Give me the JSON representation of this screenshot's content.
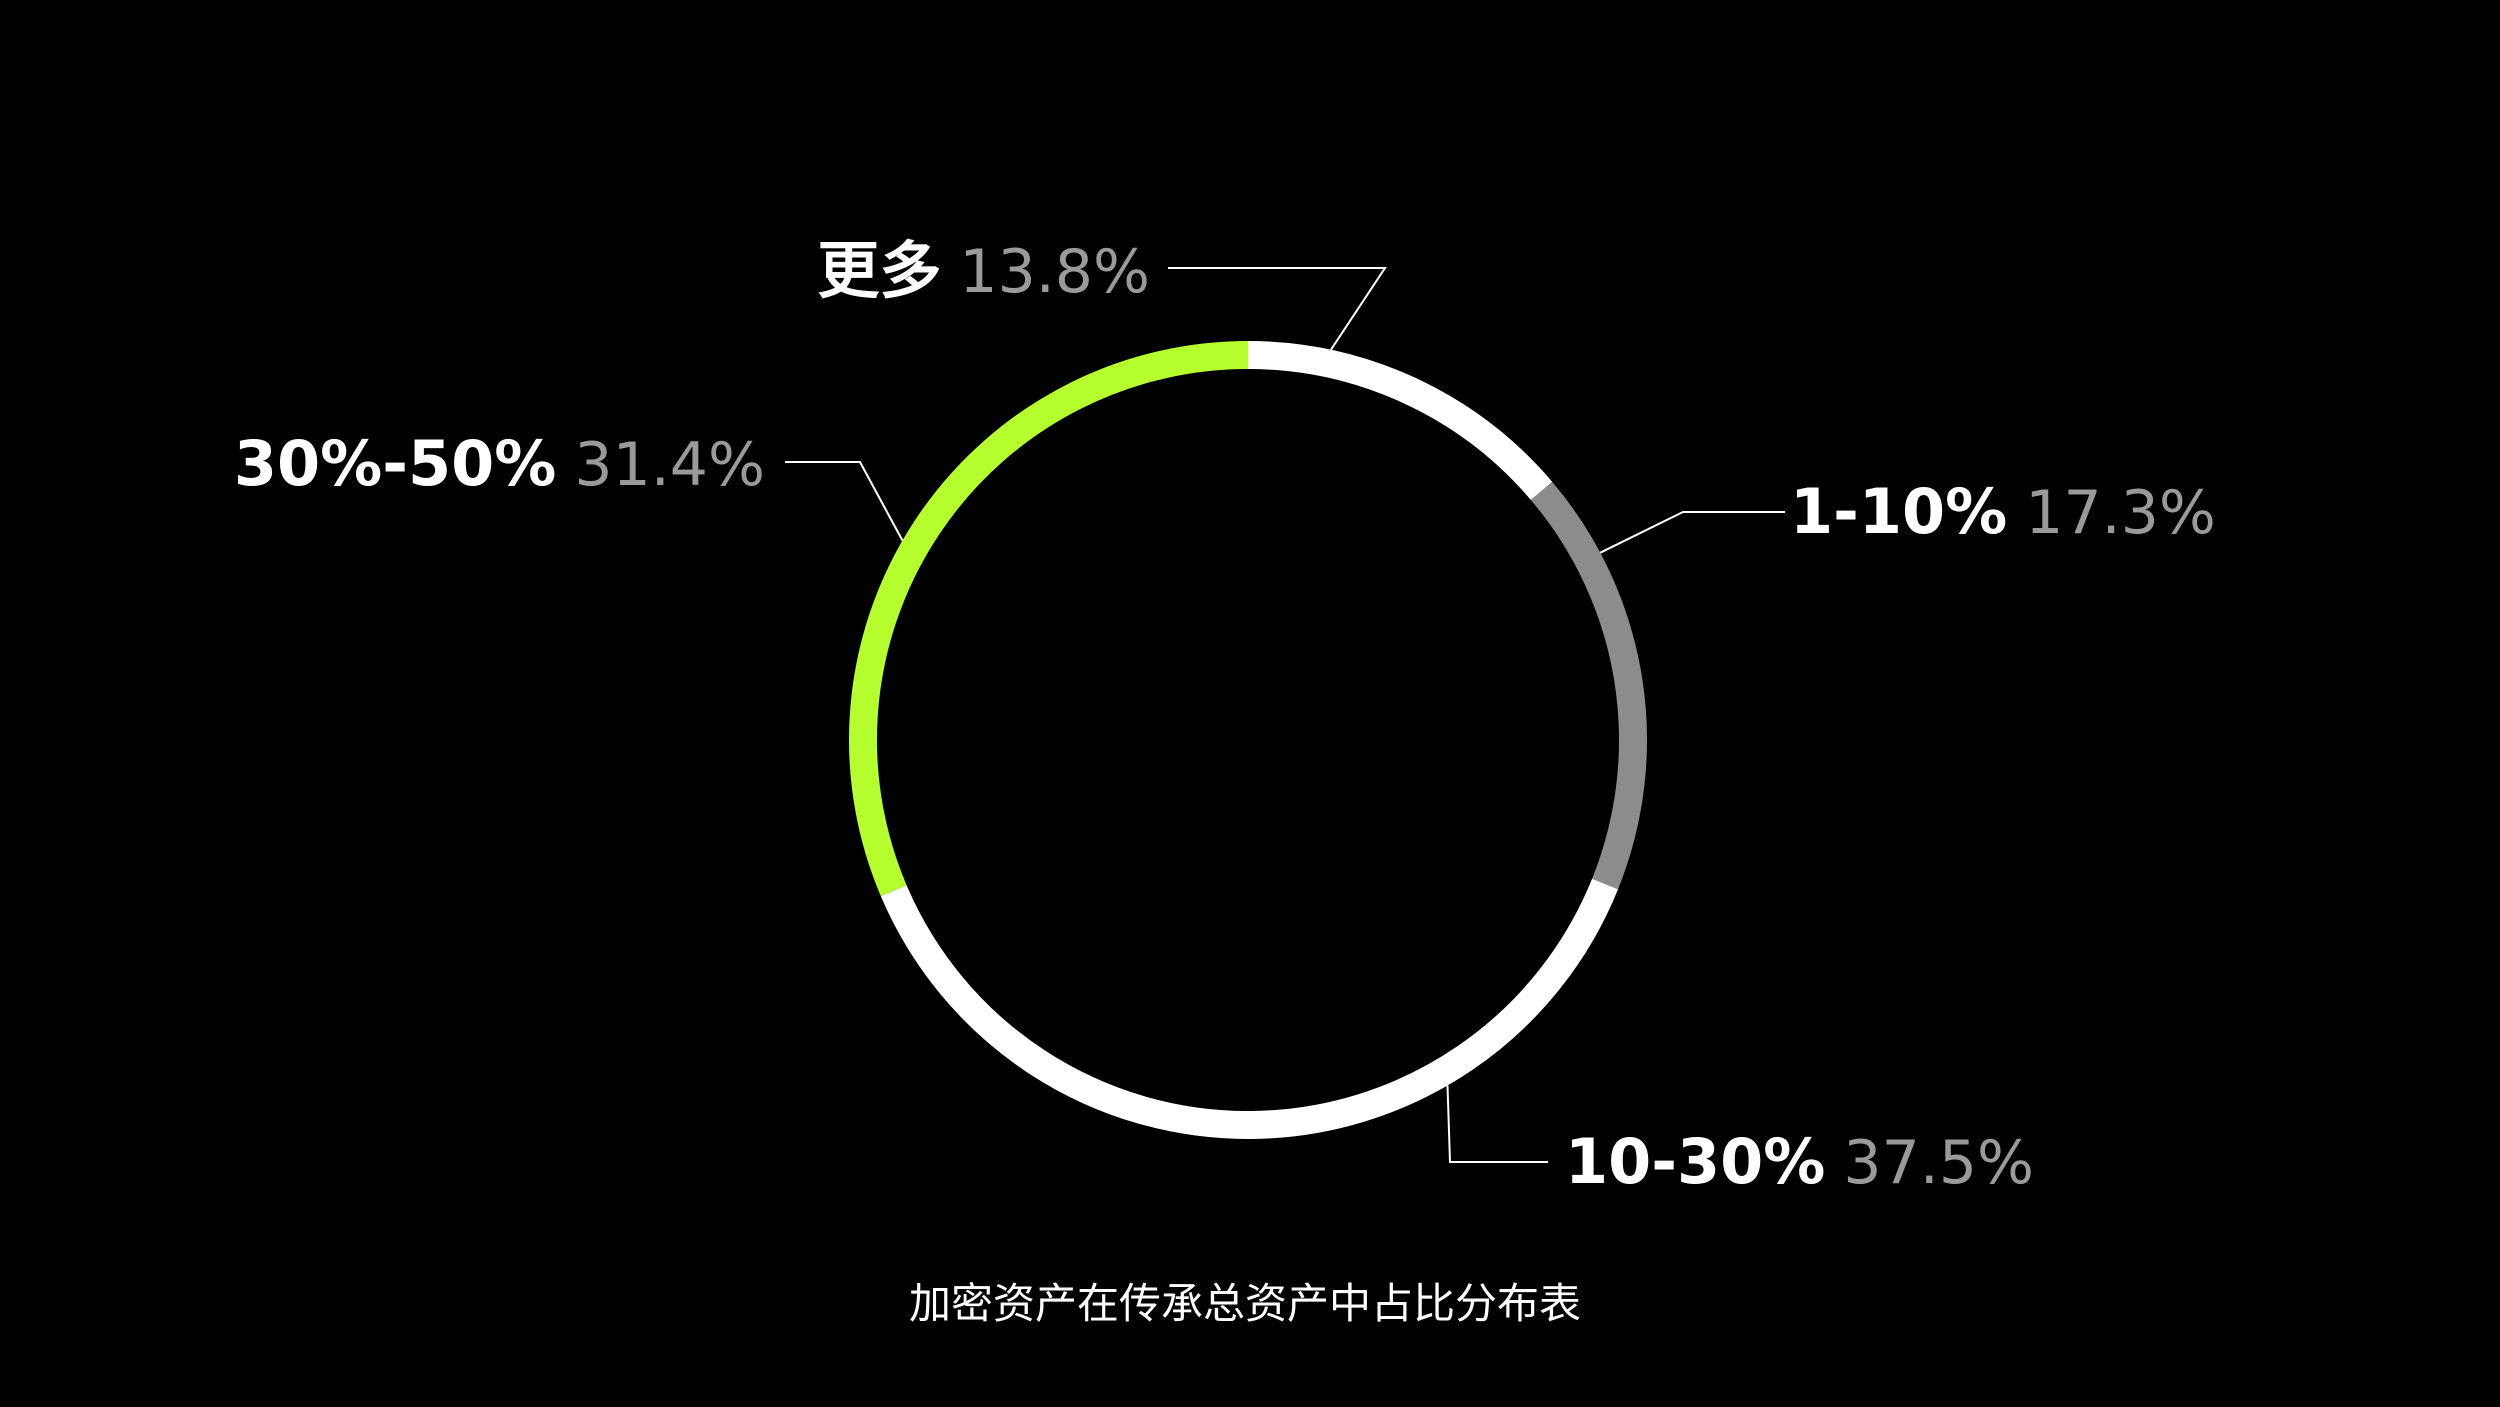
{
  "chart_data": {
    "type": "pie",
    "donut": true,
    "title": "",
    "caption": "加密资产在传承总资产中占比分布表",
    "start_angle_deg": 0,
    "direction": "clockwise",
    "slices": [
      {
        "label": "更多",
        "value": 13.8,
        "value_label": "13.8%",
        "color": "#ffffff"
      },
      {
        "label": "1-10%",
        "value": 17.3,
        "value_label": "17.3%",
        "color": "#8c8c8c"
      },
      {
        "label": "10-30%",
        "value": 37.5,
        "value_label": "37.5%",
        "color": "#ffffff"
      },
      {
        "label": "30%-50%",
        "value": 31.4,
        "value_label": "31.4%",
        "color": "#b6ff2e"
      }
    ],
    "value_label_color": "#9a9a9a",
    "leader_color": "#ffffff",
    "background": "#000000"
  }
}
